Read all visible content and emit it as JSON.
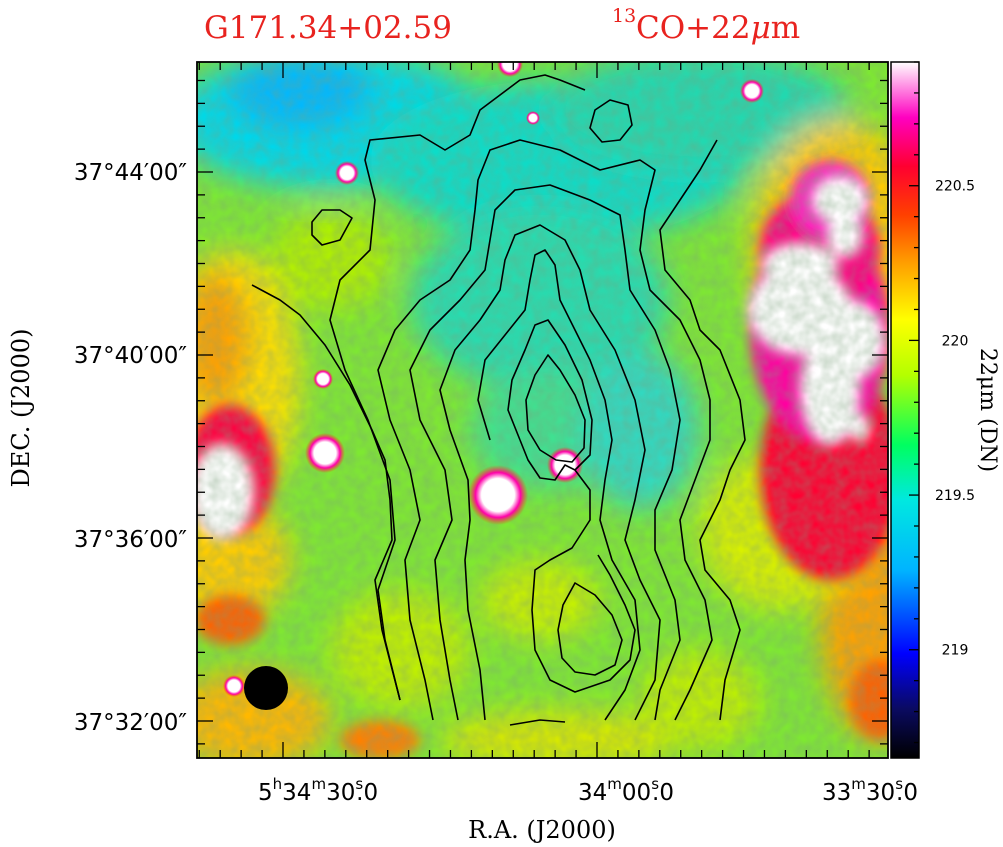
{
  "chart_data": {
    "type": "heatmap",
    "title": {
      "source": "G171.34+02.59",
      "tracer_sup": "13",
      "tracer_rest": "CO+22",
      "tracer_mu": "μ",
      "tracer_unit": "m"
    },
    "xlabel": "R.A.  (J2000)",
    "ylabel": "DEC.  (J2000)",
    "colorbar": {
      "label": "22μm  (DN)",
      "range": [
        218.65,
        220.9
      ],
      "ticks": [
        {
          "value": 219,
          "label": "219"
        },
        {
          "value": 219.5,
          "label": "219.5"
        },
        {
          "value": 220,
          "label": "220"
        },
        {
          "value": 220.5,
          "label": "220.5"
        }
      ],
      "colormap": [
        "#000000",
        "#0000ff",
        "#00c8ff",
        "#00ff60",
        "#ffff00",
        "#ff8000",
        "#ff0000",
        "#ff00ff",
        "#ffffff"
      ]
    },
    "x_ticks": [
      {
        "h": "5",
        "m": "34",
        "s": "30",
        "frac": "0",
        "value_sec": 30
      },
      {
        "h": "",
        "m": "34",
        "s": "00",
        "frac": "0",
        "value_sec": 0
      },
      {
        "h": "",
        "m": "33",
        "s": "30",
        "frac": "0",
        "value_sec": -30
      }
    ],
    "y_ticks": [
      {
        "label": "37°44′00″",
        "value_arcmin": 44
      },
      {
        "label": "37°40′00″",
        "value_arcmin": 40
      },
      {
        "label": "37°36′00″",
        "value_arcmin": 36
      },
      {
        "label": "37°32′00″",
        "value_arcmin": 32
      }
    ],
    "beam": "filled-circle",
    "contours_source": "13CO"
  }
}
